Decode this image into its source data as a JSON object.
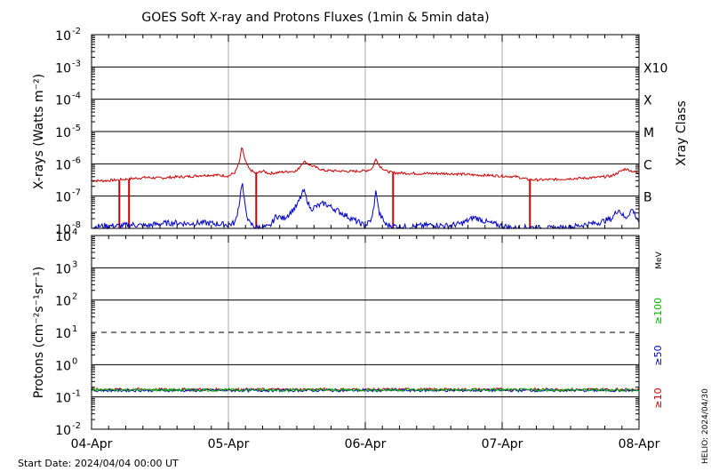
{
  "title": "GOES Soft X-ray and Protons Fluxes   (1min & 5min data)",
  "start_date": "Start Date: 2024/04/04 00:00 UT",
  "credit": "HELIO: 2024/04/30",
  "colors": {
    "red": "#cc0000",
    "blue": "#0000cc",
    "green": "#00bb00",
    "grid": "#000000",
    "day_line": "#aaaaaa"
  },
  "chart_data": [
    {
      "type": "line",
      "panel": "xray",
      "ylabel": "X-rays (Watts m⁻²)",
      "yscale": "log",
      "ylim": [
        1e-08,
        0.01
      ],
      "y_ticks": [
        {
          "base": "10",
          "exp": "-2",
          "value": 0.01
        },
        {
          "base": "10",
          "exp": "-3",
          "value": 0.001
        },
        {
          "base": "10",
          "exp": "-4",
          "value": 0.0001
        },
        {
          "base": "10",
          "exp": "-5",
          "value": 1e-05
        },
        {
          "base": "10",
          "exp": "-6",
          "value": 1e-06
        },
        {
          "base": "10",
          "exp": "-7",
          "value": 1e-07
        },
        {
          "base": "10",
          "exp": "-8",
          "value": 1e-08
        }
      ],
      "right_axis_label": "Xray Class",
      "classes": [
        {
          "label": "X10",
          "value": 0.001
        },
        {
          "label": "X",
          "value": 0.0001
        },
        {
          "label": "M",
          "value": 1e-05
        },
        {
          "label": "C",
          "value": 1e-06
        },
        {
          "label": "B",
          "value": 1e-07
        }
      ],
      "x_days": [
        "04-Apr",
        "05-Apr",
        "06-Apr",
        "07-Apr",
        "08-Apr"
      ],
      "series": [
        {
          "color": "#cc0000",
          "day": [
            0.0,
            0.1,
            0.2,
            0.3,
            0.4,
            0.5,
            0.6,
            0.7,
            0.8,
            0.9,
            1.0,
            1.05,
            1.08,
            1.1,
            1.12,
            1.15,
            1.2,
            1.25,
            1.3,
            1.4,
            1.5,
            1.55,
            1.6,
            1.7,
            1.8,
            1.9,
            2.0,
            2.05,
            2.08,
            2.1,
            2.15,
            2.2,
            2.3,
            2.4,
            2.5,
            2.6,
            2.7,
            2.8,
            2.9,
            3.0,
            3.1,
            3.2,
            3.3,
            3.4,
            3.5,
            3.6,
            3.7,
            3.8,
            3.9,
            4.0
          ],
          "flux": [
            3e-07,
            3e-07,
            3.2e-07,
            3.5e-07,
            3.8e-07,
            3.6e-07,
            3.9e-07,
            4e-07,
            4.4e-07,
            4.5e-07,
            4.2e-07,
            5.5e-07,
            1.1e-06,
            3.5e-06,
            1.3e-06,
            7e-07,
            5e-07,
            6e-07,
            5e-07,
            5.6e-07,
            6e-07,
            1.2e-06,
            9e-07,
            6.2e-07,
            6e-07,
            5.8e-07,
            6.1e-07,
            7e-07,
            1.5e-06,
            9e-07,
            6e-07,
            5.3e-07,
            5.1e-07,
            5e-07,
            5e-07,
            5e-07,
            4.8e-07,
            4.5e-07,
            4.4e-07,
            4.2e-07,
            4e-07,
            3.2e-07,
            3.2e-07,
            3.3e-07,
            3.5e-07,
            3.6e-07,
            3.8e-07,
            4.2e-07,
            7e-07,
            5e-07
          ]
        },
        {
          "color": "#0000cc",
          "day": [
            0.0,
            0.1,
            0.2,
            0.3,
            0.4,
            0.5,
            0.6,
            0.7,
            0.8,
            0.9,
            1.0,
            1.05,
            1.08,
            1.1,
            1.12,
            1.15,
            1.2,
            1.25,
            1.3,
            1.35,
            1.4,
            1.45,
            1.5,
            1.55,
            1.6,
            1.7,
            1.8,
            1.9,
            2.0,
            2.05,
            2.08,
            2.1,
            2.15,
            2.2,
            2.3,
            2.4,
            2.5,
            2.6,
            2.7,
            2.8,
            2.9,
            3.0,
            3.1,
            3.2,
            3.3,
            3.4,
            3.5,
            3.6,
            3.7,
            3.8,
            3.85,
            3.9,
            3.95,
            4.0
          ],
          "flux": [
            1.1e-08,
            1.2e-08,
            1.2e-08,
            1.3e-08,
            1.2e-08,
            1.4e-08,
            1.5e-08,
            1.4e-08,
            1.5e-08,
            1.4e-08,
            1.3e-08,
            1.5e-08,
            6e-08,
            3e-07,
            5e-08,
            1.5e-08,
            1.1e-08,
            1.1e-08,
            1.1e-08,
            2.5e-08,
            2e-08,
            3e-08,
            5e-08,
            1.5e-07,
            4e-08,
            6e-08,
            3.5e-08,
            2e-08,
            1.2e-08,
            2e-08,
            1.6e-07,
            3e-08,
            1.3e-08,
            1.2e-08,
            1.1e-08,
            1.2e-08,
            1.3e-08,
            1.2e-08,
            1.4e-08,
            2.2e-08,
            1.5e-08,
            1.2e-08,
            1e-08,
            1.1e-08,
            1e-08,
            1e-08,
            1.1e-08,
            1.3e-08,
            1.5e-08,
            2e-08,
            4e-08,
            2e-08,
            4e-08,
            1.6e-08
          ]
        }
      ],
      "dropouts_day": [
        0.27,
        0.2,
        1.2,
        2.2,
        3.2
      ]
    },
    {
      "type": "line",
      "panel": "protons",
      "ylabel": "Protons (cm⁻²s⁻¹sr⁻¹)",
      "yscale": "log",
      "ylim": [
        0.01,
        10000
      ],
      "y_ticks": [
        {
          "base": "10",
          "exp": "4",
          "value": 10000.0
        },
        {
          "base": "10",
          "exp": "3",
          "value": 1000.0
        },
        {
          "base": "10",
          "exp": "2",
          "value": 100.0
        },
        {
          "base": "10",
          "exp": "1",
          "value": 10.0
        },
        {
          "base": "10",
          "exp": "0",
          "value": 1.0
        },
        {
          "base": "10",
          "exp": "-1",
          "value": 0.1
        },
        {
          "base": "10",
          "exp": "-2",
          "value": 0.01
        }
      ],
      "threshold": 10,
      "right_labels": [
        {
          "text": "MeV",
          "color": "#000000"
        },
        {
          "text": "≥100",
          "color": "#00bb00"
        },
        {
          "text": "≥50",
          "color": "#0000cc"
        },
        {
          "text": "≥10",
          "color": "#cc0000"
        }
      ],
      "series": [
        {
          "color": "#cc0000",
          "level": 0.17
        },
        {
          "color": "#0000cc",
          "level": 0.16
        },
        {
          "color": "#00bb00",
          "level": 0.165
        }
      ],
      "x_days": [
        "04-Apr",
        "05-Apr",
        "06-Apr",
        "07-Apr",
        "08-Apr"
      ]
    }
  ]
}
